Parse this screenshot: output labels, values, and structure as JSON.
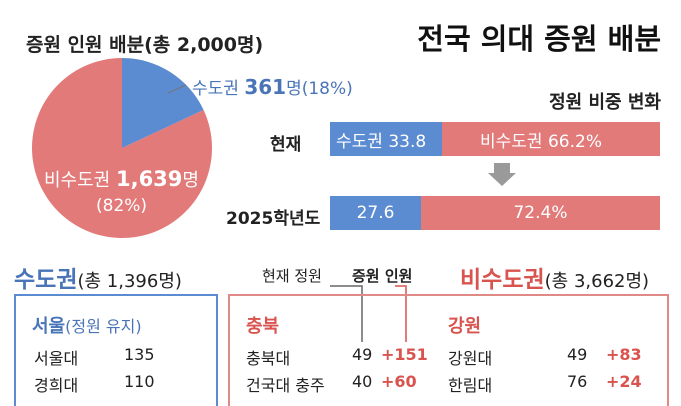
{
  "title": "전국 의대 증원 배분",
  "pie": {
    "title": "증원 인원 배분(총 2,000명)",
    "capital_label": "수도권",
    "capital_count": "361",
    "capital_unit_pct": "명(18%)",
    "non_capital_label": "비수도권",
    "non_capital_count": "1,639",
    "non_capital_unit": "명",
    "non_capital_pct": "(82%)"
  },
  "share": {
    "title": "정원 비중 변화",
    "row1_label": "현재",
    "row1_capital": "수도권 33.8",
    "row1_non": "비수도권 66.2%",
    "row2_label": "2025학년도",
    "row2_capital": "27.6",
    "row2_non": "72.4%"
  },
  "capital_section": {
    "name": "수도권",
    "total": "(총 1,396명)",
    "region": "서울",
    "region_note": "(정원 유지)",
    "rows": [
      {
        "school": "서울대",
        "value": "135"
      },
      {
        "school": "경희대",
        "value": "110"
      }
    ]
  },
  "legend": {
    "current": "현재 정원",
    "increase": "증원 인원"
  },
  "non_capital_section": {
    "name": "비수도권",
    "total": "(총 3,662명)",
    "region1": "충북",
    "region1_rows": [
      {
        "school": "충북대",
        "current": "49",
        "increase": "+151"
      },
      {
        "school": "건국대 충주",
        "current": "40",
        "increase": "+60"
      }
    ],
    "region2": "강원",
    "region2_rows": [
      {
        "school": "강원대",
        "current": "49",
        "increase": "+83"
      },
      {
        "school": "한림대",
        "current": "76",
        "increase": "+24"
      }
    ]
  },
  "colors": {
    "capital": "#5b8bd0",
    "non_capital": "#e27a7a",
    "accent_blue": "#4a74b8",
    "accent_red": "#d9534f"
  },
  "chart_data": [
    {
      "type": "pie",
      "title": "증원 인원 배분(총 2,000명)",
      "labels": [
        "수도권",
        "비수도권"
      ],
      "values": [
        361,
        1639
      ],
      "percent": [
        18,
        82
      ]
    },
    {
      "type": "bar",
      "title": "정원 비중 변화",
      "categories": [
        "현재",
        "2025학년도"
      ],
      "series": [
        {
          "name": "수도권",
          "values": [
            33.8,
            27.6
          ]
        },
        {
          "name": "비수도권",
          "values": [
            66.2,
            72.4
          ]
        }
      ]
    }
  ]
}
